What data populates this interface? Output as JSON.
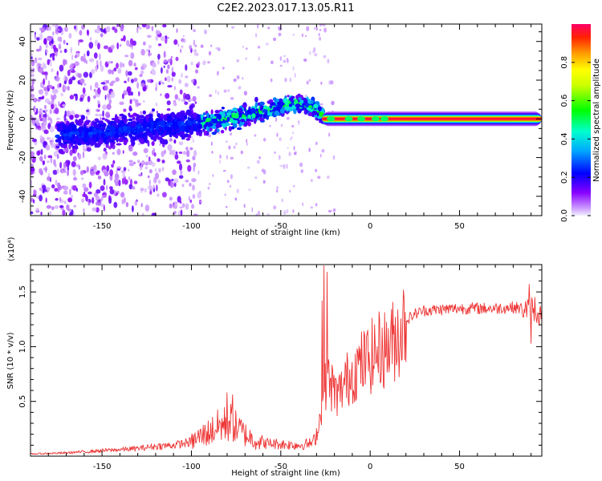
{
  "chart_data": [
    {
      "type": "heatmap",
      "title": "C2E2.2023.017.13.05.R11",
      "xlabel": "Height of straight line (km)",
      "ylabel": "Frequency (Hz)",
      "xlim": [
        -190,
        96
      ],
      "ylim": [
        -50,
        49
      ],
      "x_ticks": [
        -150,
        -100,
        -50,
        0,
        50
      ],
      "y_ticks": [
        -40,
        -20,
        0,
        20,
        40
      ],
      "colorbar": {
        "label": "Normalized spectral amplitude",
        "range": [
          0,
          1
        ],
        "ticks": [
          "0.0",
          "0.2",
          "0.4",
          "0.6",
          "0.8"
        ],
        "tick_values": [
          0.0,
          0.2,
          0.4,
          0.6,
          0.8
        ]
      },
      "ridge": {
        "x": [
          -190,
          -160,
          -140,
          -120,
          -100,
          -80,
          -60,
          -45,
          -35,
          -28,
          -25,
          96
        ],
        "y": [
          -8,
          -8,
          -6,
          -4,
          -3,
          0,
          4,
          8,
          7,
          3,
          0,
          0
        ]
      },
      "notes": "Noisy low-amplitude (purple) scatter for x < -100; rising ridge to ~+8 Hz near x=-40; strong narrow line at 0 Hz for x > -25 (amplitude ~1.0)"
    },
    {
      "type": "line",
      "title": "",
      "xlabel": "Height of straight line (km)",
      "ylabel": "SNR (10 * v/v)",
      "y_multiplier": "(x10⁴)",
      "xlim": [
        -190,
        96
      ],
      "ylim": [
        0,
        17500
      ],
      "x_ticks": [
        -150,
        -100,
        -50,
        0,
        50
      ],
      "y_ticks": [
        5000,
        10000,
        15000
      ],
      "y_tick_labels": [
        "0.5",
        "1.0",
        "1.5"
      ],
      "series": [
        {
          "name": "SNR",
          "color": "#ee3333",
          "x": [
            -190,
            -170,
            -150,
            -130,
            -120,
            -110,
            -100,
            -95,
            -90,
            -85,
            -80,
            -77,
            -75,
            -72,
            -70,
            -65,
            -60,
            -50,
            -40,
            -32,
            -30,
            -28,
            -26,
            -25,
            -24,
            -22,
            -20,
            -18,
            -15,
            -12,
            -10,
            -8,
            -5,
            -2,
            0,
            3,
            5,
            8,
            10,
            13,
            15,
            18,
            20,
            25,
            30,
            40,
            50,
            60,
            70,
            80,
            85,
            88,
            90,
            92,
            94,
            96
          ],
          "y": [
            200,
            300,
            500,
            700,
            900,
            1000,
            1300,
            1800,
            2200,
            2700,
            3000,
            3100,
            2600,
            2300,
            2000,
            1500,
            1200,
            1100,
            1000,
            1200,
            2000,
            3500,
            5000,
            6500,
            7000,
            6500,
            6000,
            5500,
            6500,
            7200,
            7600,
            8000,
            8400,
            8700,
            9000,
            9400,
            9700,
            9800,
            10000,
            10500,
            11000,
            11800,
            12400,
            13000,
            13300,
            13400,
            13500,
            13500,
            13500,
            13600,
            13500,
            13400,
            13800,
            13200,
            13000,
            12800
          ],
          "spikes": [
            {
              "x": -26,
              "y": 17400
            },
            {
              "x": -24,
              "y": 16800
            },
            {
              "x": -27,
              "y": 14200
            },
            {
              "x": -80,
              "y": 5800
            },
            {
              "x": -77,
              "y": 5600
            },
            {
              "x": 89,
              "y": 15700
            },
            {
              "x": 90,
              "y": 10300
            },
            {
              "x": 92,
              "y": 14500
            }
          ]
        }
      ]
    }
  ]
}
